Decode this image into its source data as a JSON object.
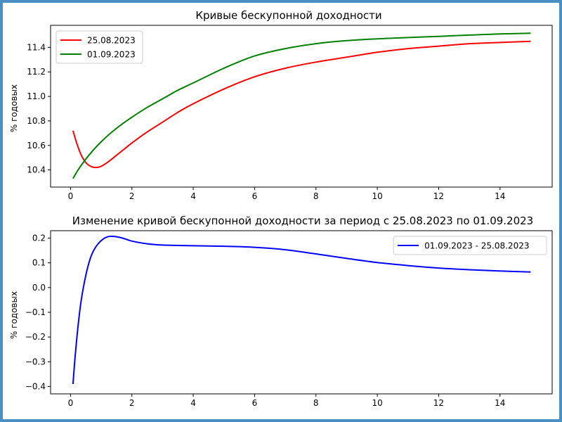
{
  "chart_data": [
    {
      "type": "line",
      "title": "Кривые бескупонной доходности",
      "xlabel": "",
      "ylabel": "% годовых",
      "xlim": [
        -0.65,
        15.7
      ],
      "ylim": [
        10.26,
        11.58
      ],
      "xticks": [
        0,
        2,
        4,
        6,
        8,
        10,
        12,
        14
      ],
      "yticks": [
        10.4,
        10.6,
        10.8,
        11.0,
        11.2,
        11.4
      ],
      "ytick_labels": [
        "10.4",
        "10.6",
        "10.8",
        "11.0",
        "11.2",
        "11.4"
      ],
      "grid": false,
      "legend": "top-left",
      "series": [
        {
          "name": "25.08.2023",
          "color": "#ff0000",
          "x": [
            0.08,
            0.2,
            0.35,
            0.5,
            0.65,
            0.8,
            1.0,
            1.25,
            1.5,
            1.75,
            2.0,
            2.5,
            3.0,
            3.5,
            4.0,
            5.0,
            6.0,
            7.0,
            8.0,
            9.0,
            10.0,
            11.0,
            12.0,
            13.0,
            14.0,
            15.0
          ],
          "y": [
            10.72,
            10.62,
            10.52,
            10.46,
            10.43,
            10.42,
            10.43,
            10.47,
            10.52,
            10.57,
            10.62,
            10.71,
            10.79,
            10.87,
            10.94,
            11.06,
            11.16,
            11.23,
            11.28,
            11.32,
            11.36,
            11.39,
            11.41,
            11.43,
            11.44,
            11.45
          ]
        },
        {
          "name": "01.09.2023",
          "color": "#008000",
          "x": [
            0.08,
            0.3,
            0.6,
            1.0,
            1.5,
            2.0,
            2.5,
            3.0,
            3.5,
            4.0,
            5.0,
            6.0,
            7.0,
            8.0,
            9.0,
            10.0,
            11.0,
            12.0,
            13.0,
            14.0,
            15.0
          ],
          "y": [
            10.33,
            10.42,
            10.52,
            10.63,
            10.74,
            10.83,
            10.91,
            10.98,
            11.05,
            11.11,
            11.23,
            11.33,
            11.39,
            11.43,
            11.455,
            11.47,
            11.48,
            11.49,
            11.5,
            11.51,
            11.515
          ]
        }
      ]
    },
    {
      "type": "line",
      "title": "Изменение кривой бескупонной доходности за период с 25.08.2023 по 01.09.2023",
      "xlabel": "",
      "ylabel": "% годовых",
      "xlim": [
        -0.65,
        15.7
      ],
      "ylim": [
        -0.43,
        0.23
      ],
      "xticks": [
        0,
        2,
        4,
        6,
        8,
        10,
        12,
        14
      ],
      "yticks": [
        0.2,
        0.1,
        0.0,
        -0.1,
        -0.2,
        -0.3,
        -0.4
      ],
      "ytick_labels": [
        "0.2",
        "0.1",
        "0.0",
        "−0.1",
        "−0.2",
        "−0.3",
        "−0.4"
      ],
      "grid": false,
      "legend": "top-right",
      "series": [
        {
          "name": "01.09.2023 - 25.08.2023",
          "color": "#0000ff",
          "x": [
            0.08,
            0.15,
            0.25,
            0.35,
            0.5,
            0.65,
            0.8,
            1.0,
            1.2,
            1.4,
            1.6,
            1.8,
            2.0,
            2.5,
            3.0,
            4.0,
            5.0,
            6.0,
            7.0,
            8.0,
            9.0,
            10.0,
            11.0,
            12.0,
            13.0,
            14.0,
            15.0
          ],
          "y": [
            -0.39,
            -0.28,
            -0.15,
            -0.05,
            0.05,
            0.12,
            0.16,
            0.19,
            0.205,
            0.207,
            0.203,
            0.196,
            0.188,
            0.177,
            0.172,
            0.169,
            0.167,
            0.163,
            0.153,
            0.136,
            0.118,
            0.101,
            0.089,
            0.079,
            0.072,
            0.067,
            0.063
          ]
        }
      ]
    }
  ]
}
